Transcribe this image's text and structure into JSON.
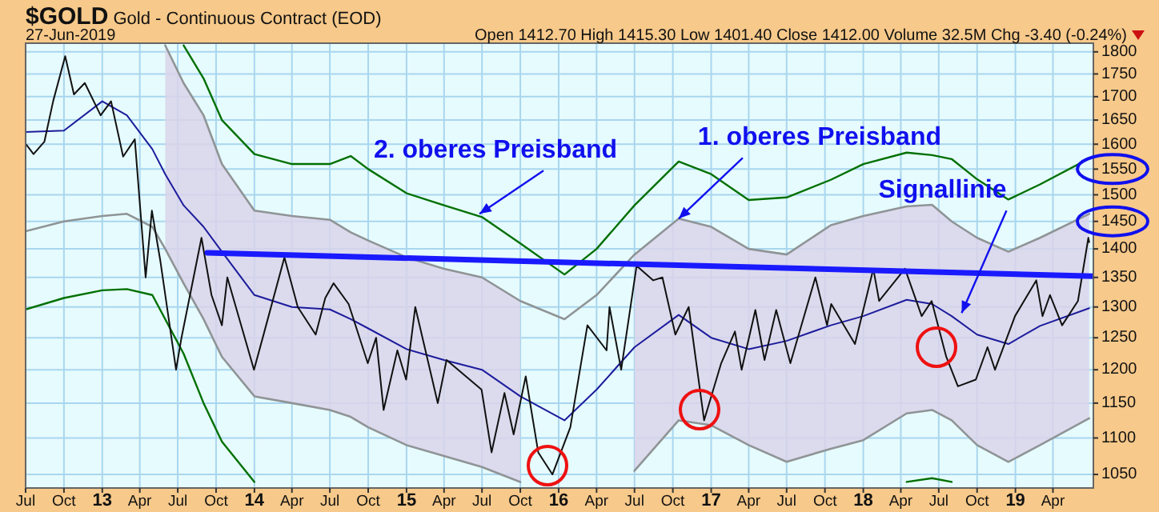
{
  "chart_data": {
    "type": "line",
    "title": "$GOLD Gold - Continuous Contract (EOD)",
    "subtitle": "27-Jun-2019",
    "annotations": [
      "Open 1412.70 High 1415.30 Low 1401.40 Close 1412.00 Volume 32.5M Chg -3.40 (-0.24%)",
      {
        "text": "2. oberes Preisband",
        "x": "2015-06-25",
        "y": 1464
      },
      {
        "text": "1. oberes Preisband",
        "x": "2016-10-15",
        "y": 1455
      },
      {
        "text": "Signallinie",
        "x": "2018-08-25",
        "y": 1290
      }
    ],
    "log": true,
    "grid": true,
    "xlim": [
      "2012-07-01",
      "2019-07-07"
    ],
    "xticks": [
      {
        "value": "2012-07-01",
        "label": "Jul"
      },
      {
        "value": "2012-10-01",
        "label": "Oct"
      },
      {
        "value": "2013-01-01",
        "label": "13"
      },
      {
        "value": "2013-04-01",
        "label": "Apr"
      },
      {
        "value": "2013-07-01",
        "label": "Jul"
      },
      {
        "value": "2013-10-01",
        "label": "Oct"
      },
      {
        "value": "2014-01-01",
        "label": "14"
      },
      {
        "value": "2014-04-01",
        "label": "Apr"
      },
      {
        "value": "2014-07-01",
        "label": "Jul"
      },
      {
        "value": "2014-10-01",
        "label": "Oct"
      },
      {
        "value": "2015-01-01",
        "label": "15"
      },
      {
        "value": "2015-04-01",
        "label": "Apr"
      },
      {
        "value": "2015-07-01",
        "label": "Jul"
      },
      {
        "value": "2015-10-01",
        "label": "Oct"
      },
      {
        "value": "2016-01-01",
        "label": "16"
      },
      {
        "value": "2016-04-01",
        "label": "Apr"
      },
      {
        "value": "2016-07-01",
        "label": "Jul"
      },
      {
        "value": "2016-10-01",
        "label": "Oct"
      },
      {
        "value": "2017-01-01",
        "label": "17"
      },
      {
        "value": "2017-04-01",
        "label": "Apr"
      },
      {
        "value": "2017-07-01",
        "label": "Jul"
      },
      {
        "value": "2017-10-01",
        "label": "Oct"
      },
      {
        "value": "2018-01-01",
        "label": "18"
      },
      {
        "value": "2018-04-01",
        "label": "Apr"
      },
      {
        "value": "2018-07-01",
        "label": "Jul"
      },
      {
        "value": "2018-10-01",
        "label": "Oct"
      },
      {
        "value": "2019-01-01",
        "label": "19"
      },
      {
        "value": "2019-04-01",
        "label": "Apr"
      }
    ],
    "ylim": [
      1032,
      1820
    ],
    "yticks": [
      1050,
      1100,
      1150,
      1200,
      1250,
      1300,
      1350,
      1400,
      1450,
      1500,
      1550,
      1600,
      1650,
      1700,
      1750,
      1800
    ],
    "series": [
      {
        "color": "#1c1c9c",
        "x": [
          "2012-07-01",
          "2012-10-01",
          "2013-01-01",
          "2013-03-01",
          "2013-05-01",
          "2013-06-01",
          "2013-07-15",
          "2013-09-01",
          "2013-10-15",
          "2014-01-01",
          "2014-04-01",
          "2014-07-01",
          "2014-08-20",
          "2014-10-01",
          "2015-01-01",
          "2015-04-01",
          "2015-07-01",
          "2015-10-01",
          "2016-01-15",
          "2016-04-01",
          "2016-07-01",
          "2016-10-15",
          "2017-01-01",
          "2017-04-01",
          "2017-07-01",
          "2017-10-15",
          "2018-01-01",
          "2018-04-15",
          "2018-06-15",
          "2018-08-01",
          "2018-10-01",
          "2018-12-15",
          "2019-03-01",
          "2019-06-27"
        ],
        "values": [
          1625,
          1628,
          1690,
          1660,
          1590,
          1540,
          1480,
          1440,
          1395,
          1320,
          1300,
          1296,
          1280,
          1265,
          1232,
          1215,
          1200,
          1160,
          1125,
          1170,
          1235,
          1287,
          1250,
          1232,
          1245,
          1270,
          1285,
          1312,
          1305,
          1285,
          1255,
          1240,
          1269,
          1298
        ],
        "lower": [
          null,
          null,
          null,
          null,
          null,
          1400,
          1340,
          1280,
          1220,
          1160,
          1150,
          1140,
          1130,
          1115,
          1090,
          1075,
          1060,
          1040,
          null,
          null,
          1055,
          1125,
          1118,
          1090,
          1067,
          1085,
          1097,
          1135,
          1140,
          1125,
          1090,
          1067,
          1090,
          1128
        ],
        "upper": [
          null,
          null,
          null,
          null,
          null,
          1815,
          1730,
          1660,
          1560,
          1470,
          1460,
          1453,
          1430,
          1415,
          1385,
          1365,
          1350,
          1310,
          null,
          null,
          1390,
          1455,
          1440,
          1400,
          1390,
          1443,
          1460,
          1478,
          1481,
          1450,
          1420,
          1395,
          1420,
          1464
        ]
      },
      {
        "color": "#8f9496",
        "x": [
          "2012-07-01",
          "2012-10-01",
          "2013-01-01",
          "2013-03-01",
          "2013-05-01",
          "2013-06-01",
          "2013-07-15",
          "2013-09-01",
          "2013-10-15",
          "2014-01-01",
          "2014-04-01",
          "2014-07-01",
          "2014-08-20",
          "2014-10-01",
          "2015-01-01",
          "2015-04-01",
          "2015-07-01",
          "2015-10-01"
        ],
        "values": [
          1432,
          1450,
          1460,
          1464,
          1440,
          1400,
          1340,
          1280,
          1220,
          1160,
          1150,
          1140,
          1130,
          1115,
          1090,
          1075,
          1060,
          1040
        ]
      },
      {
        "color": "#8f9496",
        "x": [
          "2016-07-01",
          "2016-10-15",
          "2017-01-01",
          "2017-04-01",
          "2017-07-01",
          "2017-10-15",
          "2018-01-01",
          "2018-04-15",
          "2018-06-15",
          "2018-08-01",
          "2018-10-01",
          "2018-12-15",
          "2019-03-01",
          "2019-06-27"
        ],
        "values": [
          1055,
          1125,
          1118,
          1090,
          1067,
          1085,
          1097,
          1135,
          1140,
          1125,
          1090,
          1067,
          1090,
          1128
        ]
      },
      {
        "color": "#8f9496",
        "x": [
          "2013-06-01",
          "2013-07-15",
          "2013-09-01",
          "2013-10-15",
          "2014-01-01",
          "2014-04-01",
          "2014-07-01",
          "2014-08-20",
          "2014-10-01",
          "2015-01-01",
          "2015-04-01",
          "2015-07-01",
          "2015-10-01",
          "2016-01-15",
          "2016-04-01",
          "2016-07-01",
          "2016-10-15",
          "2017-01-01",
          "2017-04-01",
          "2017-07-01",
          "2017-10-15",
          "2018-01-01",
          "2018-04-15",
          "2018-06-15",
          "2018-08-01",
          "2018-10-01",
          "2018-12-15",
          "2019-03-01",
          "2019-06-27"
        ],
        "values": [
          1815,
          1730,
          1660,
          1560,
          1470,
          1460,
          1453,
          1430,
          1415,
          1385,
          1365,
          1350,
          1310,
          1280,
          1320,
          1390,
          1455,
          1440,
          1400,
          1390,
          1443,
          1460,
          1478,
          1481,
          1450,
          1420,
          1395,
          1420,
          1464
        ]
      },
      {
        "color": "#007000",
        "x": [
          "2013-07-15",
          "2013-09-01",
          "2013-10-15",
          "2014-01-01",
          "2014-04-01",
          "2014-07-01",
          "2014-08-20",
          "2014-10-01",
          "2015-01-01",
          "2015-04-01",
          "2015-07-01",
          "2015-10-01",
          "2016-01-15",
          "2016-04-01",
          "2016-07-01",
          "2016-10-15",
          "2017-01-01",
          "2017-04-01",
          "2017-07-01",
          "2017-10-15",
          "2018-01-01",
          "2018-04-15",
          "2018-06-15",
          "2018-08-01",
          "2018-10-01",
          "2018-12-15",
          "2019-03-01",
          "2019-06-27"
        ],
        "values": [
          1815,
          1740,
          1650,
          1580,
          1560,
          1560,
          1576,
          1550,
          1503,
          1480,
          1458,
          1410,
          1355,
          1400,
          1480,
          1565,
          1540,
          1490,
          1495,
          1529,
          1560,
          1583,
          1578,
          1570,
          1530,
          1491,
          1520,
          1571
        ]
      },
      {
        "color": "#007000",
        "x": [
          "2012-07-01",
          "2012-10-01",
          "2013-01-01",
          "2013-03-01",
          "2013-05-01",
          "2013-06-01",
          "2013-07-15",
          "2013-09-01",
          "2013-10-15",
          "2014-01-01"
        ],
        "values": [
          1296,
          1315,
          1328,
          1330,
          1320,
          1280,
          1225,
          1150,
          1095,
          1040
        ]
      },
      {
        "color": "#007000",
        "x": [
          "2018-04-15",
          "2018-06-15",
          "2018-08-01"
        ],
        "values": [
          1040,
          1045,
          1040
        ]
      },
      {
        "color": "#111111",
        "x": [
          "2012-07-02",
          "2012-07-20",
          "2012-08-15",
          "2012-09-05",
          "2012-10-04",
          "2012-10-25",
          "2012-11-20",
          "2012-12-28",
          "2013-01-22",
          "2013-02-20",
          "2013-03-20",
          "2013-04-15",
          "2013-04-30",
          "2013-05-20",
          "2013-06-27",
          "2013-07-10",
          "2013-08-27",
          "2013-09-20",
          "2013-10-15",
          "2013-10-28",
          "2013-12-31",
          "2014-01-25",
          "2014-03-14",
          "2014-04-15",
          "2014-05-28",
          "2014-06-20",
          "2014-07-10",
          "2014-08-15",
          "2014-09-30",
          "2014-10-20",
          "2014-11-07",
          "2014-12-10",
          "2014-12-31",
          "2015-01-22",
          "2015-03-17",
          "2015-04-07",
          "2015-06-30",
          "2015-07-24",
          "2015-08-24",
          "2015-09-15",
          "2015-10-14",
          "2015-11-13",
          "2015-12-17",
          "2016-01-29",
          "2016-03-10",
          "2016-04-25",
          "2016-05-02",
          "2016-05-30",
          "2016-07-06",
          "2016-08-15",
          "2016-09-06",
          "2016-10-07",
          "2016-11-08",
          "2016-12-15",
          "2017-01-25",
          "2017-02-27",
          "2017-03-15",
          "2017-04-17",
          "2017-05-09",
          "2017-06-06",
          "2017-07-10",
          "2017-09-08",
          "2017-10-06",
          "2017-10-16",
          "2017-12-12",
          "2018-01-25",
          "2018-02-08",
          "2018-04-11",
          "2018-05-21",
          "2018-06-14",
          "2018-07-19",
          "2018-08-16",
          "2018-09-28",
          "2018-10-26",
          "2018-11-13",
          "2018-12-31",
          "2019-02-20",
          "2019-03-07",
          "2019-03-25",
          "2019-04-23",
          "2019-05-31",
          "2019-06-25",
          "2019-06-27"
        ],
        "values": [
          1600,
          1580,
          1605,
          1690,
          1790,
          1705,
          1730,
          1660,
          1690,
          1575,
          1610,
          1350,
          1470,
          1380,
          1200,
          1250,
          1420,
          1320,
          1270,
          1350,
          1200,
          1260,
          1385,
          1300,
          1255,
          1315,
          1340,
          1305,
          1210,
          1250,
          1140,
          1230,
          1185,
          1300,
          1150,
          1215,
          1170,
          1080,
          1165,
          1105,
          1190,
          1080,
          1050,
          1115,
          1270,
          1230,
          1300,
          1200,
          1370,
          1345,
          1350,
          1255,
          1300,
          1125,
          1210,
          1260,
          1200,
          1295,
          1215,
          1295,
          1210,
          1350,
          1270,
          1305,
          1240,
          1365,
          1310,
          1365,
          1285,
          1310,
          1220,
          1175,
          1185,
          1235,
          1200,
          1285,
          1345,
          1285,
          1320,
          1270,
          1310,
          1420,
          1412
        ]
      },
      {
        "color": "#1a1aff",
        "x": [
          "2013-09-10",
          "2019-07-07"
        ],
        "values": [
          1393,
          1352
        ]
      }
    ]
  }
}
